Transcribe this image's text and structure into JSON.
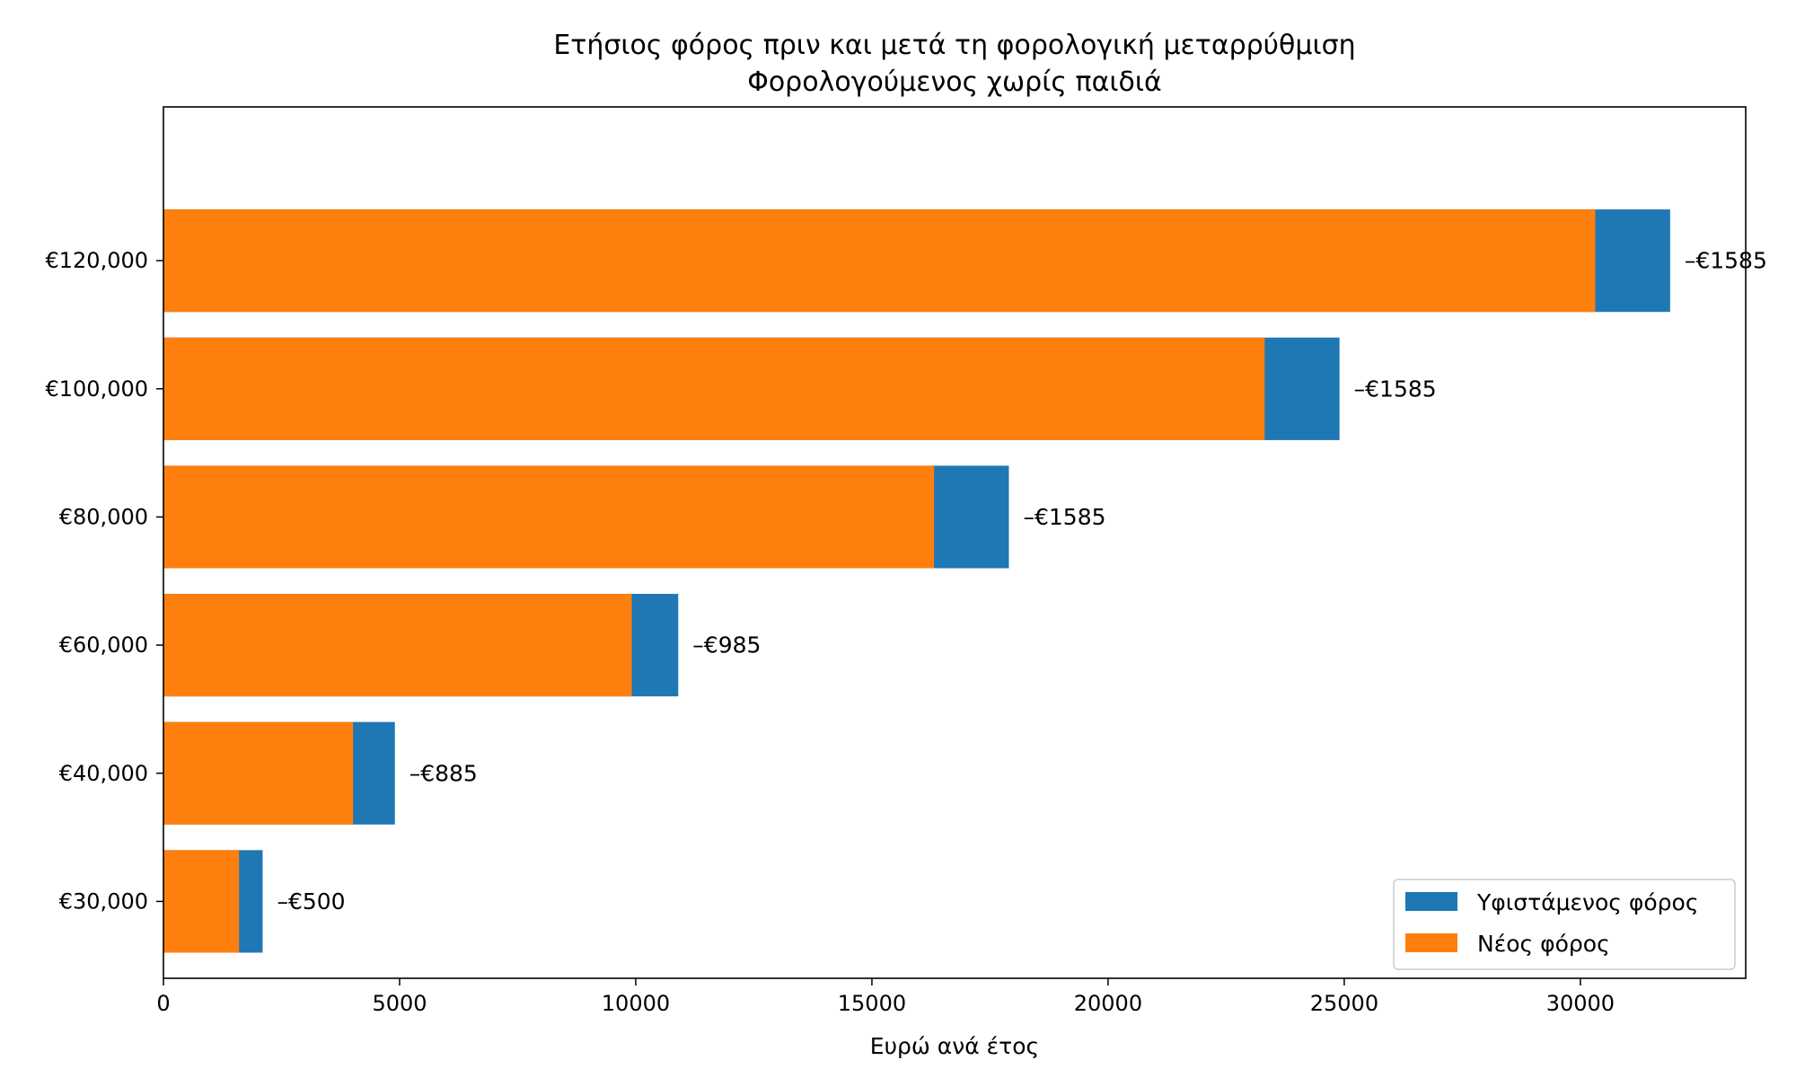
{
  "chart_data": {
    "type": "bar",
    "orientation": "horizontal",
    "title": "Ετήσιος φόρος πριν και μετά τη φορολογική μεταρρύθμιση",
    "subtitle": "Φορολογούμενος χωρίς παιδιά",
    "xlabel": "Ευρώ ανά έτος",
    "ylabel": "",
    "xlim": [
      0,
      33500
    ],
    "xticks": [
      0,
      5000,
      10000,
      15000,
      20000,
      25000,
      30000
    ],
    "xtick_labels": [
      "0",
      "5000",
      "10000",
      "15000",
      "20000",
      "25000",
      "30000"
    ],
    "categories": [
      "€30,000",
      "€40,000",
      "€60,000",
      "€80,000",
      "€100,000",
      "€120,000"
    ],
    "series": [
      {
        "name": "Υφιστάμενος φόρος",
        "color": "#1f77b4",
        "values": [
          2100,
          4900,
          10900,
          17900,
          24900,
          31900
        ]
      },
      {
        "name": "Νέος φόρος",
        "color": "#ff7f0e",
        "values": [
          1600,
          4015,
          9915,
          16315,
          23315,
          30315
        ]
      }
    ],
    "data_labels": [
      "–€500",
      "–€885",
      "–€985",
      "–€1585",
      "–€1585",
      "–€1585"
    ],
    "grid": false,
    "legend_position": "lower-right"
  }
}
